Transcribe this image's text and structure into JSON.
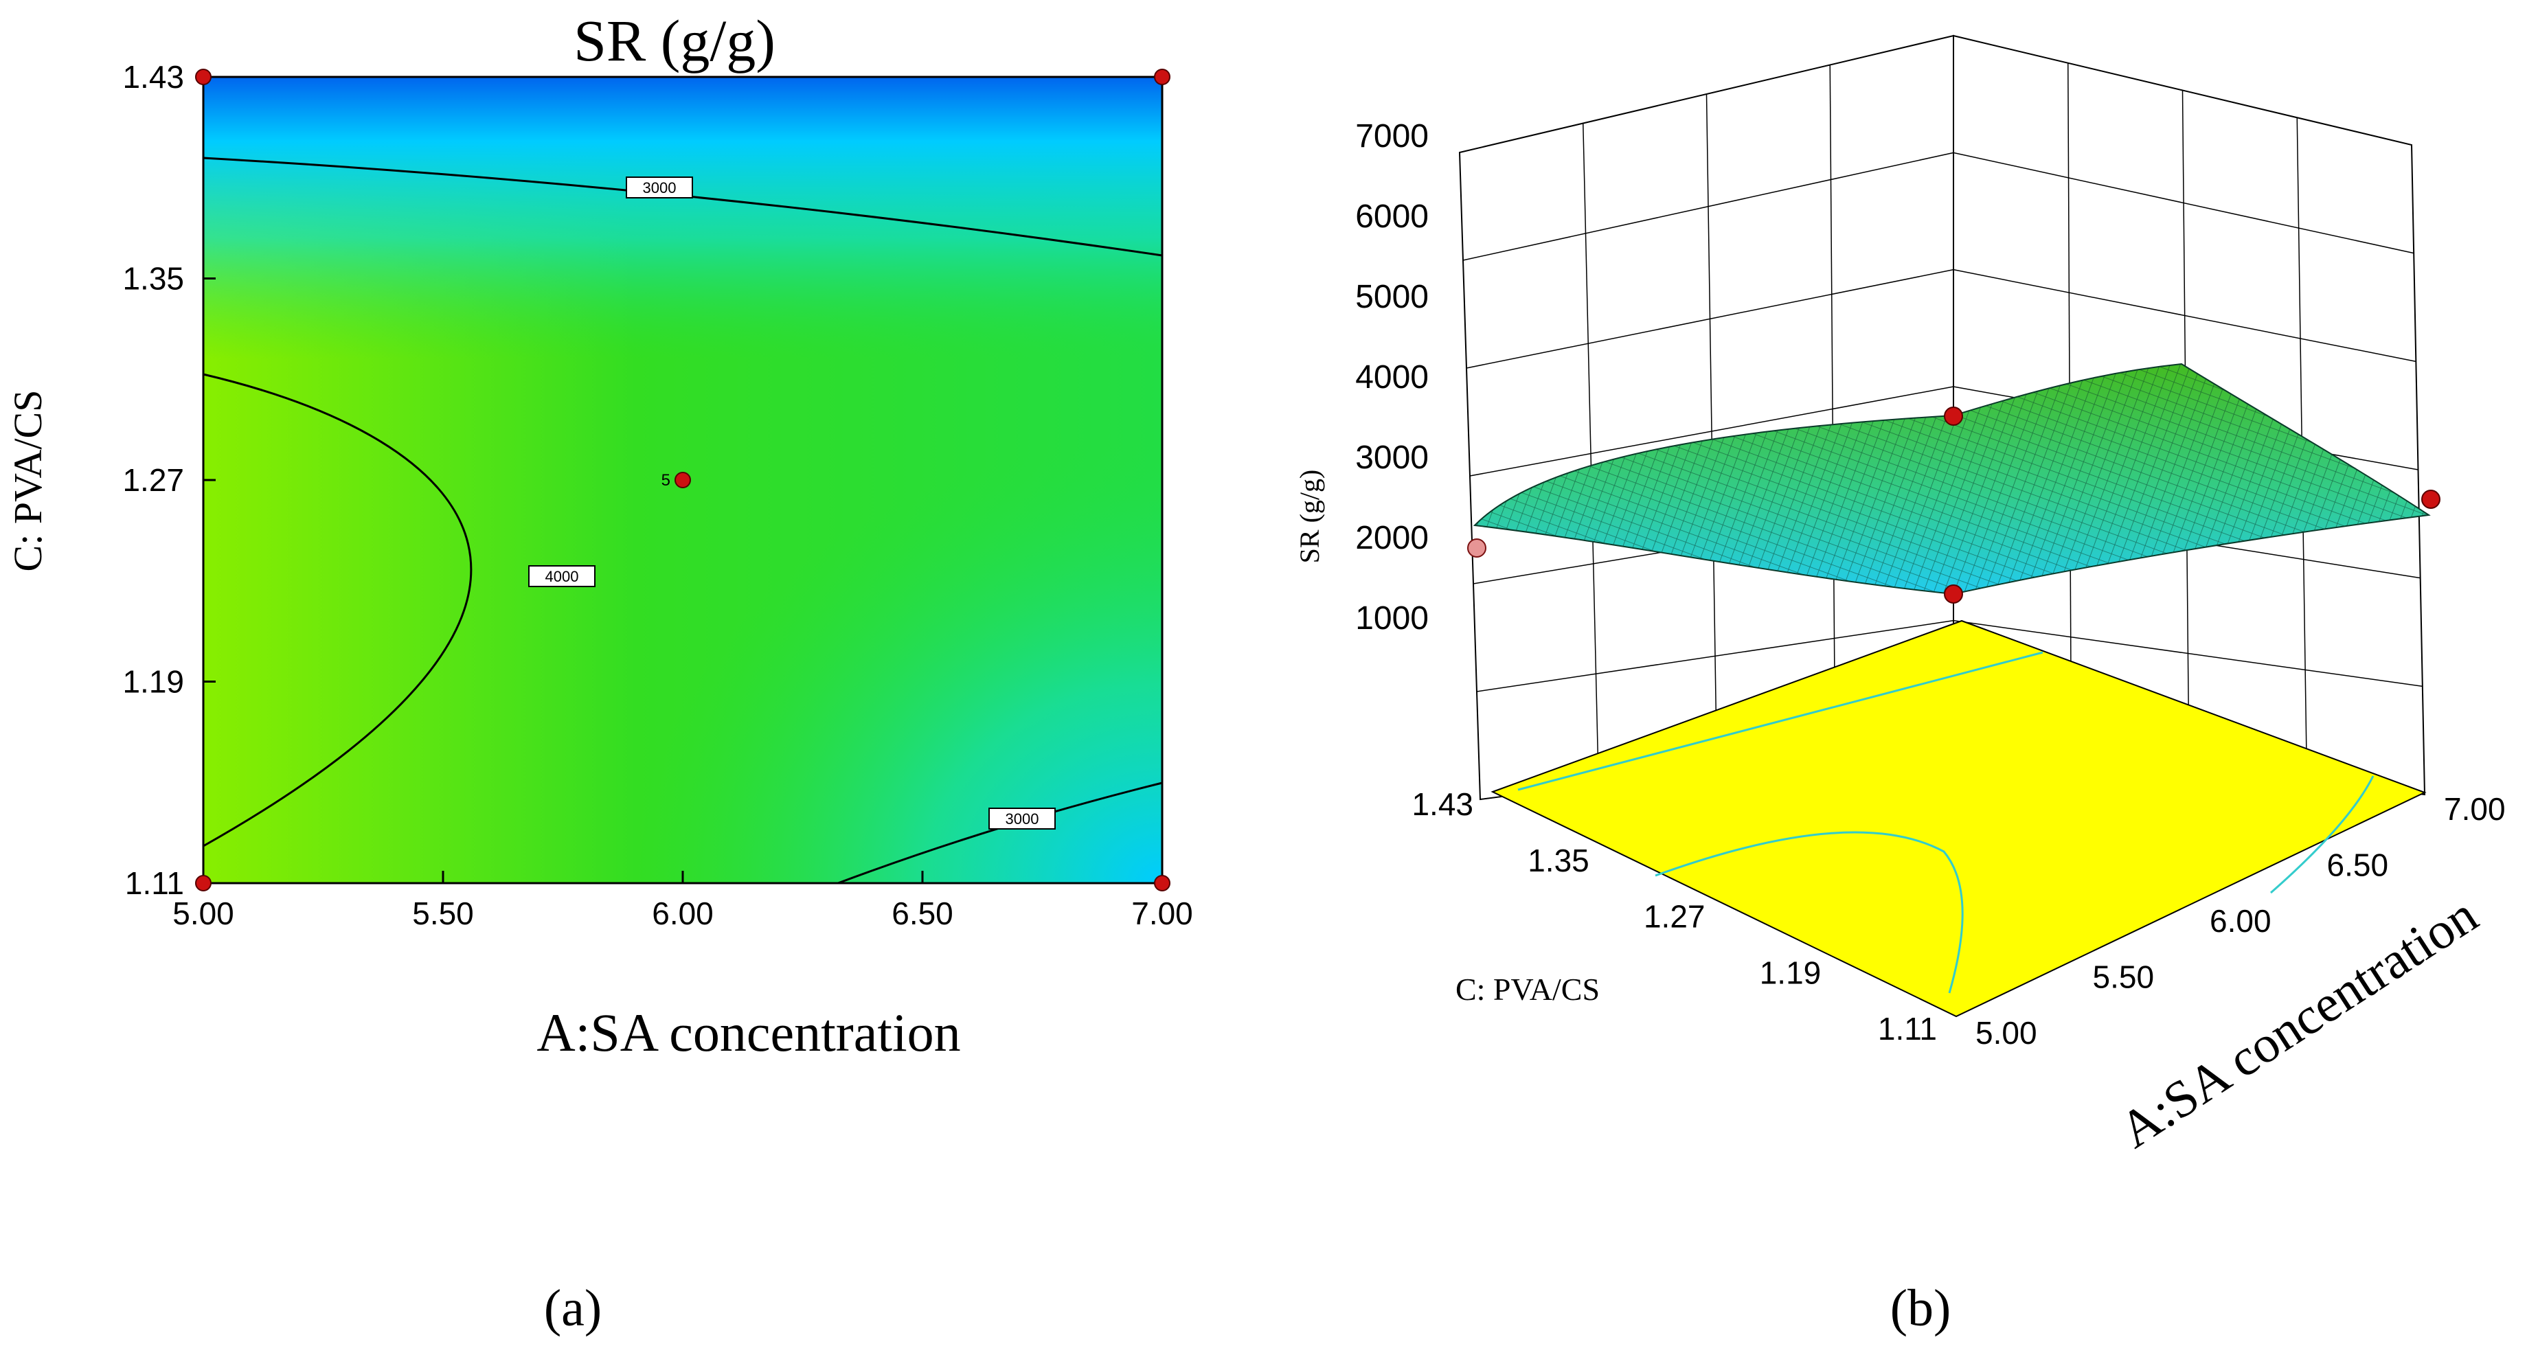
{
  "chart_data": [
    {
      "type": "contour",
      "panel_label": "a",
      "title": "SR (g/g)",
      "xlabel": "A:SA concentration",
      "ylabel": "C: PVA/CS",
      "xlim": [
        5.0,
        7.0
      ],
      "ylim": [
        1.11,
        1.43
      ],
      "xticks": [
        "5.00",
        "5.50",
        "6.00",
        "6.50",
        "7.00"
      ],
      "yticks": [
        "1.11",
        "1.19",
        "1.27",
        "1.35",
        "1.43"
      ],
      "contour_labels": [
        "3000",
        "4000",
        "3000"
      ],
      "design_points": [
        {
          "x": 5.0,
          "y": 1.11
        },
        {
          "x": 7.0,
          "y": 1.11
        },
        {
          "x": 5.0,
          "y": 1.43
        },
        {
          "x": 7.0,
          "y": 1.43
        },
        {
          "x": 6.0,
          "y": 1.27,
          "replicates": "5"
        }
      ],
      "center_point_label": "5",
      "colors": {
        "high": "#88ee00",
        "mid": "#22dd33",
        "low": "#00ccff",
        "lowest": "#0077ee"
      }
    },
    {
      "type": "surface3d",
      "panel_label": "b",
      "zlabel": "SR (g/g)",
      "xlabel": "A:SA concentration",
      "ylabel": "C: PVA/CS",
      "zticks": [
        "1000",
        "2000",
        "3000",
        "4000",
        "5000",
        "6000",
        "7000"
      ],
      "xticks": [
        "5.00",
        "5.50",
        "6.00",
        "6.50",
        "7.00"
      ],
      "yticks": [
        "1.11",
        "1.19",
        "1.27",
        "1.35",
        "1.43"
      ],
      "xlim": [
        5.0,
        7.0
      ],
      "ylim": [
        1.11,
        1.43
      ],
      "zlim": [
        1000,
        7000
      ],
      "colors": {
        "floor": "#ffff00",
        "floor_contour": "#33cccc",
        "surface_high": "#55cc22",
        "surface_low": "#22ccee"
      }
    }
  ],
  "captions": {
    "a": "(a)",
    "b": "(b)"
  }
}
